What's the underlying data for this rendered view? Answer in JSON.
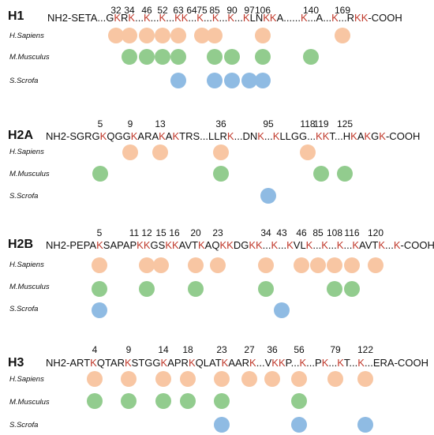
{
  "species": [
    "H.Sapiens",
    "M.Musculus",
    "S.Scrofa"
  ],
  "colors": {
    "H.Sapiens": "#f8c6a3",
    "M.Musculus": "#92cc8e",
    "S.Scrofa": "#8fbbe3",
    "lysine": "#c0392b"
  },
  "blocks": [
    {
      "name": "H1",
      "sequence": "NH2-SETA...GKRK...K...K...KK...K...K...K...KLNKKA......K...A...K...RKK-COOH",
      "positions": [
        "32",
        "34",
        "46",
        "52",
        "63",
        "64",
        "75",
        "85",
        "90",
        "97",
        "106",
        "140",
        "169"
      ],
      "marks": {
        "H.Sapiens": [
          "32",
          "34",
          "46",
          "52",
          "63",
          "75",
          "85",
          "106",
          "169"
        ],
        "M.Musculus": [
          "34",
          "46",
          "52",
          "63",
          "85",
          "90",
          "106",
          "140"
        ],
        "S.Scrofa": [
          "63",
          "85",
          "90",
          "97",
          "106"
        ]
      }
    },
    {
      "name": "H2A",
      "sequence": "NH2-SGRGKQGGKARAKAKTRS...LLRK...DNK...KLLGG...KKT...HKAKGK-COOH",
      "positions": [
        "5",
        "9",
        "13",
        "36",
        "95",
        "118",
        "119",
        "125"
      ],
      "marks": {
        "H.Sapiens": [
          "9",
          "13",
          "36",
          "118"
        ],
        "M.Musculus": [
          "5",
          "36",
          "119",
          "125"
        ],
        "S.Scrofa": [
          "95"
        ]
      }
    },
    {
      "name": "H2B",
      "sequence": "NH2-PEPAKSAPAPKKGSKKAVTKAQKKDGKK...K...KVLK...K...K...KAVTK...K-COOH",
      "positions": [
        "5",
        "11",
        "12",
        "15",
        "16",
        "20",
        "23",
        "34",
        "43",
        "46",
        "85",
        "108",
        "116",
        "120"
      ],
      "marks": {
        "H.Sapiens": [
          "5",
          "12",
          "15",
          "20",
          "23",
          "34",
          "46",
          "85",
          "108",
          "116",
          "120"
        ],
        "M.Musculus": [
          "5",
          "12",
          "20",
          "34",
          "108",
          "116"
        ],
        "S.Scrofa": [
          "5",
          "43"
        ]
      }
    },
    {
      "name": "H3",
      "sequence": "NH2-ARTKQTARKSTGGKAPRKQLATKAARK...VKKP...K...PK...KT...K...ERA-COOH",
      "positions": [
        "4",
        "9",
        "14",
        "18",
        "23",
        "27",
        "36",
        "56",
        "79",
        "122"
      ],
      "marks": {
        "H.Sapiens": [
          "4",
          "9",
          "14",
          "18",
          "23",
          "27",
          "36",
          "56",
          "79",
          "122"
        ],
        "M.Musculus": [
          "4",
          "9",
          "14",
          "18",
          "23",
          "56"
        ],
        "S.Scrofa": [
          "23",
          "56",
          "122"
        ]
      }
    }
  ]
}
